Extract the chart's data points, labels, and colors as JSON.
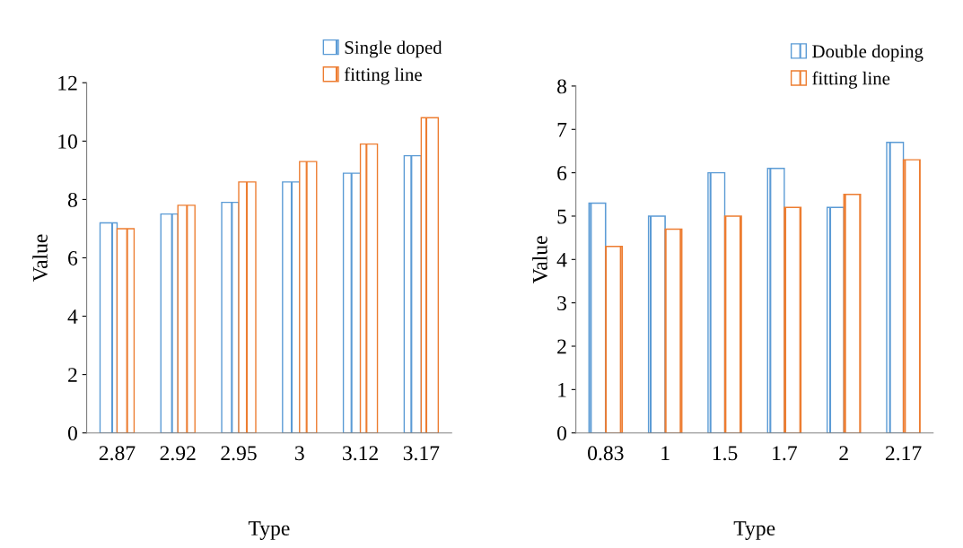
{
  "chart_data": [
    {
      "type": "bar",
      "categories": [
        "2.87",
        "2.92",
        "2.95",
        "3",
        "3.12",
        "3.17"
      ],
      "xlabel": "Type",
      "ylabel": "Value",
      "ylim": [
        0,
        12
      ],
      "yticks": [
        0,
        2,
        4,
        6,
        8,
        10,
        12
      ],
      "grid": false,
      "legend": "top right",
      "series": [
        {
          "name": "Single doped",
          "color": "#5b9bd5",
          "values": [
            7.2,
            7.5,
            7.9,
            8.6,
            8.9,
            9.5
          ]
        },
        {
          "name": "fitting line",
          "color": "#ed7d31",
          "values": [
            7.0,
            7.8,
            8.6,
            9.3,
            9.9,
            10.8
          ]
        }
      ]
    },
    {
      "type": "bar",
      "categories": [
        "0.83",
        "1",
        "1.5",
        "1.7",
        "2",
        "2.17"
      ],
      "xlabel": "Type",
      "ylabel": "Value",
      "ylim": [
        0,
        8
      ],
      "yticks": [
        0,
        1,
        2,
        3,
        4,
        5,
        6,
        7,
        8
      ],
      "grid": false,
      "legend": "top right",
      "series": [
        {
          "name": "Double doping",
          "color": "#5b9bd5",
          "values": [
            5.3,
            5.0,
            6.0,
            6.1,
            5.2,
            6.7
          ]
        },
        {
          "name": "fitting line",
          "color": "#ed7d31",
          "values": [
            4.3,
            4.7,
            5.0,
            5.2,
            5.5,
            6.3
          ]
        }
      ]
    }
  ]
}
